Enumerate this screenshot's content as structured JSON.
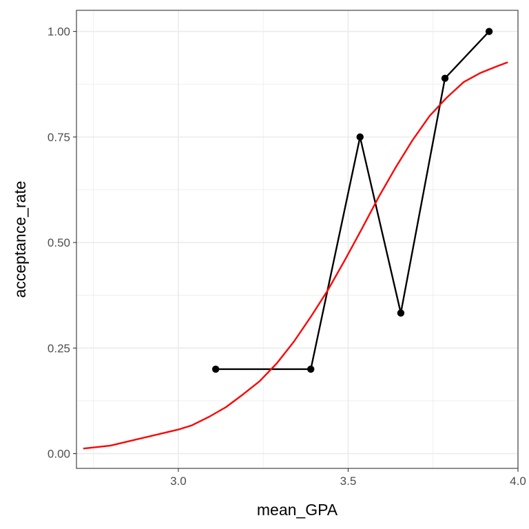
{
  "chart_data": {
    "type": "line",
    "xlabel": "mean_GPA",
    "ylabel": "acceptance_rate",
    "xlim": [
      2.7,
      4.0
    ],
    "ylim": [
      -0.035,
      1.05
    ],
    "x_ticks": [
      3.0,
      3.5,
      4.0
    ],
    "x_tick_labels": [
      "3.0",
      "3.5",
      "4.0"
    ],
    "y_ticks": [
      0.0,
      0.25,
      0.5,
      0.75,
      1.0
    ],
    "y_tick_labels": [
      "0.00",
      "0.25",
      "0.50",
      "0.75",
      "1.00"
    ],
    "grid": true,
    "series": [
      {
        "style": "line+points",
        "color": "#000000",
        "x": [
          3.11,
          3.39,
          3.535,
          3.655,
          3.785,
          3.915
        ],
        "y": [
          0.2,
          0.2,
          0.75,
          0.333,
          0.889,
          1.0
        ]
      },
      {
        "style": "line",
        "color": "#ff0000",
        "x": [
          2.72,
          2.8,
          2.9,
          3.0,
          3.04,
          3.09,
          3.14,
          3.19,
          3.24,
          3.29,
          3.34,
          3.39,
          3.44,
          3.49,
          3.54,
          3.59,
          3.64,
          3.69,
          3.74,
          3.79,
          3.84,
          3.89,
          3.94,
          3.97
        ],
        "y": [
          0.012,
          0.019,
          0.038,
          0.057,
          0.067,
          0.087,
          0.11,
          0.14,
          0.172,
          0.214,
          0.265,
          0.324,
          0.387,
          0.458,
          0.532,
          0.608,
          0.678,
          0.743,
          0.8,
          0.843,
          0.88,
          0.902,
          0.918,
          0.927
        ]
      }
    ]
  }
}
